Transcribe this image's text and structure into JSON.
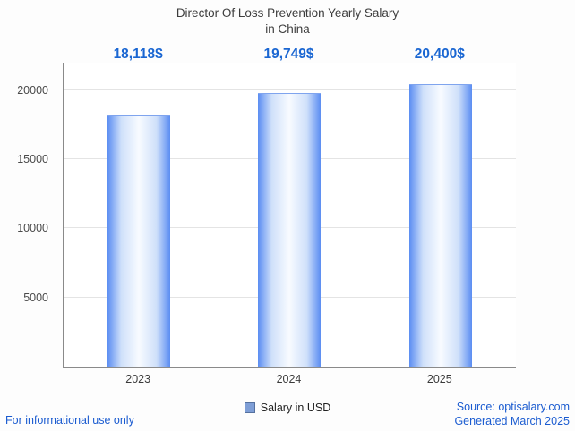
{
  "title": {
    "line1": "Director Of Loss Prevention Yearly Salary",
    "line2": "in China"
  },
  "chart_data": {
    "type": "bar",
    "title": "Director Of Loss Prevention Yearly Salary in China",
    "categories": [
      "2023",
      "2024",
      "2025"
    ],
    "values": [
      18118,
      19749,
      20400
    ],
    "value_labels": [
      "18,118$",
      "19,749$",
      "20,400$"
    ],
    "ylim": [
      0,
      22000
    ],
    "yticks": [
      5000,
      10000,
      15000,
      20000
    ],
    "grid": true,
    "legend": {
      "label": "Salary in USD",
      "position": "bottom"
    }
  },
  "footer": {
    "disclaimer": "For informational use only",
    "source": "Source: optisalary.com",
    "generated": "Generated March 2025"
  },
  "colors": {
    "value_label": "#1a66d2",
    "footer_text": "#1a5bd0",
    "bar_edge": "#5b8df2",
    "bar_center": "#f8fbff",
    "legend_swatch": "#7e9ed6"
  }
}
